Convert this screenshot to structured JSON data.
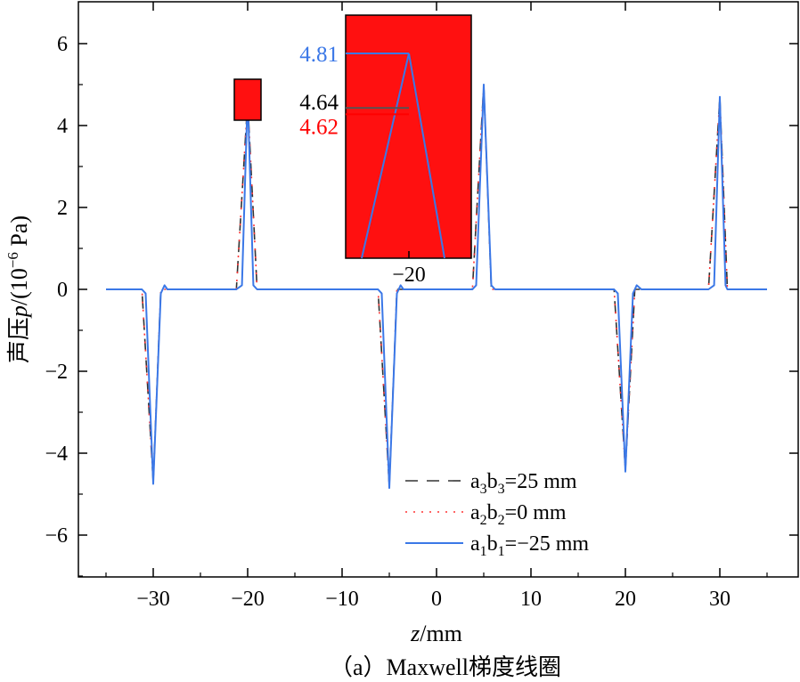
{
  "chart_data": {
    "type": "line",
    "title": "",
    "caption": "（a）Maxwell梯度线圈",
    "xlabel_italic": "z",
    "xlabel_unit": "/mm",
    "ylabel_prefix": "声压",
    "ylabel_italic": "p",
    "ylabel_unit": "/(10",
    "ylabel_exp": "−6",
    "ylabel_end": "Pa)",
    "xlim": [
      -35,
      35
    ],
    "ylim": [
      -7,
      6.8
    ],
    "x_ticks": [
      -30,
      -20,
      -10,
      0,
      10,
      20,
      30
    ],
    "x_tick_labels": [
      "−30",
      "−20",
      "−10",
      "0",
      "10",
      "20",
      "30"
    ],
    "y_ticks": [
      -6,
      -4,
      -2,
      0,
      2,
      4,
      6
    ],
    "y_tick_labels": [
      "−6",
      "−4",
      "−2",
      "0",
      "2",
      "4",
      "6"
    ],
    "legend_position": "bottom-center",
    "series": [
      {
        "name": "a3b3=25 mm",
        "legend_base": "a",
        "legend_sub1": "3",
        "legend_mid": "b",
        "legend_sub2": "3",
        "legend_rest": "=25 mm",
        "color": "#333333",
        "style": "dashed",
        "x": [
          -35,
          -31.2,
          -30,
          -29.2,
          -28.5,
          -21.2,
          -20,
          -19,
          -18.3,
          -6.2,
          -5,
          -4.2,
          -3.5,
          3.8,
          5,
          5.8,
          6.5,
          18.8,
          20,
          21,
          21.7,
          28.8,
          30,
          30.8,
          35
        ],
        "y": [
          0,
          0,
          -4.7,
          0,
          0,
          0,
          4.6,
          0,
          0,
          0,
          -4.8,
          0,
          0,
          0,
          5.0,
          0,
          0,
          0,
          -4.4,
          0,
          0,
          0,
          4.7,
          0,
          0
        ]
      },
      {
        "name": "a2b2=0 mm",
        "legend_base": "a",
        "legend_sub1": "2",
        "legend_mid": "b",
        "legend_sub2": "2",
        "legend_rest": "=0 mm",
        "color": "#ff3333",
        "style": "dotted",
        "x": [
          -35,
          -31.2,
          -30,
          -29.2,
          -28.5,
          -21.2,
          -20,
          -19,
          -18.3,
          -6.2,
          -5,
          -4.2,
          -3.5,
          3.8,
          5,
          5.8,
          6.5,
          18.8,
          20,
          21,
          21.7,
          28.8,
          30,
          30.8,
          35
        ],
        "y": [
          0,
          0,
          -4.7,
          0,
          0,
          0,
          4.6,
          0,
          0,
          0,
          -4.8,
          0,
          0,
          0,
          5.0,
          0,
          0,
          0,
          -4.4,
          0,
          0,
          0,
          4.7,
          0,
          0
        ]
      },
      {
        "name": "a1b1=−25 mm",
        "legend_base": "a",
        "legend_sub1": "1",
        "legend_mid": "b",
        "legend_sub2": "1",
        "legend_rest": "=−25 mm",
        "color": "#3b78e7",
        "style": "solid",
        "x": [
          -35,
          -31.2,
          -30.8,
          -30,
          -29.2,
          -28.8,
          -28.5,
          -21.2,
          -20.6,
          -20,
          -19.4,
          -19,
          -18.3,
          -6.2,
          -5.8,
          -5,
          -4.2,
          -3.8,
          -3.5,
          3.8,
          4.2,
          5,
          5.8,
          6.2,
          6.5,
          18.8,
          19.2,
          20,
          20.8,
          21.2,
          21.7,
          28.8,
          29.4,
          30,
          30.6,
          30.8,
          35
        ],
        "y": [
          0,
          0,
          -0.1,
          -4.75,
          -0.1,
          0.1,
          0,
          0,
          0.1,
          4.75,
          0.1,
          0,
          0,
          0,
          -0.1,
          -4.85,
          -0.1,
          0.1,
          0,
          0,
          0.1,
          5.0,
          0.1,
          0,
          0,
          0,
          -0.1,
          -4.45,
          -0.1,
          0.1,
          0,
          0,
          0.1,
          4.7,
          0.1,
          0,
          0
        ]
      }
    ],
    "inset": {
      "tick_label": "−20",
      "values": [
        {
          "label": "4.81",
          "value": 4.81,
          "color": "#3b78e7"
        },
        {
          "label": "4.64",
          "value": 4.64,
          "color": "#000000"
        },
        {
          "label": "4.62",
          "value": 4.62,
          "color": "#ff0000"
        }
      ],
      "fill_color": "#ff1010"
    }
  }
}
